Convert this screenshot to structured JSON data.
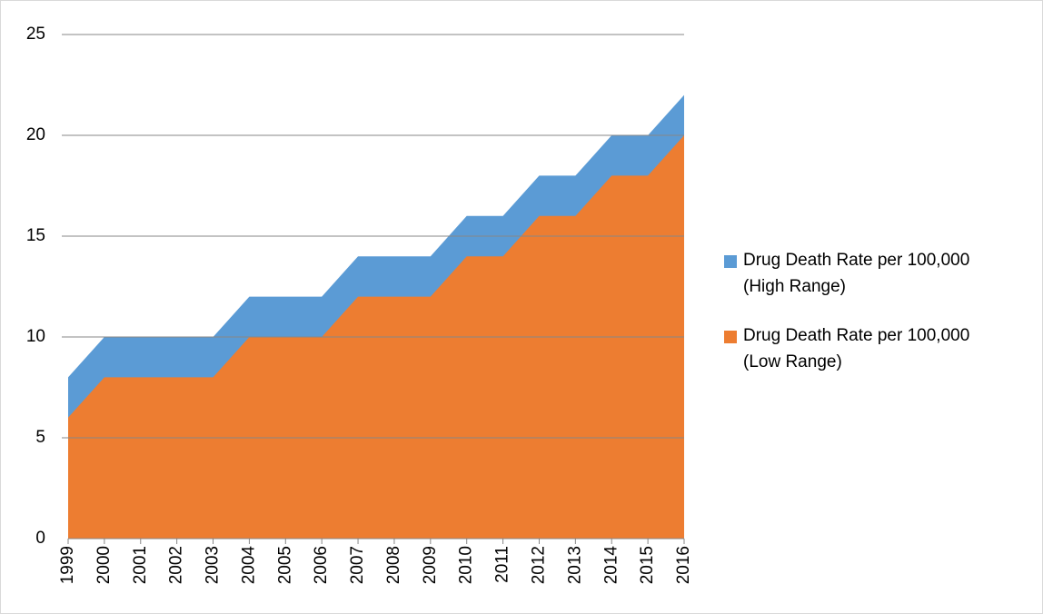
{
  "chart_data": {
    "type": "area",
    "categories": [
      "1999",
      "2000",
      "2001",
      "2002",
      "2003",
      "2004",
      "2005",
      "2006",
      "2007",
      "2008",
      "2009",
      "2010",
      "2011",
      "2012",
      "2013",
      "2014",
      "2015",
      "2016"
    ],
    "series": [
      {
        "name": "Drug Death Rate per 100,000 (High Range)",
        "color": "#5b9bd5",
        "values": [
          8,
          10,
          10,
          10,
          10,
          12,
          12,
          12,
          14,
          14,
          14,
          16,
          16,
          18,
          18,
          20,
          20,
          22
        ]
      },
      {
        "name": "Drug Death Rate per 100,000 (Low Range)",
        "color": "#ed7d31",
        "values": [
          6,
          8,
          8,
          8,
          8,
          10,
          10,
          10,
          12,
          12,
          12,
          14,
          14,
          16,
          16,
          18,
          18,
          20
        ]
      }
    ],
    "ylim": [
      0,
      25
    ],
    "yticks": [
      0,
      5,
      10,
      15,
      20,
      25
    ],
    "grid": true,
    "legend": "right"
  }
}
